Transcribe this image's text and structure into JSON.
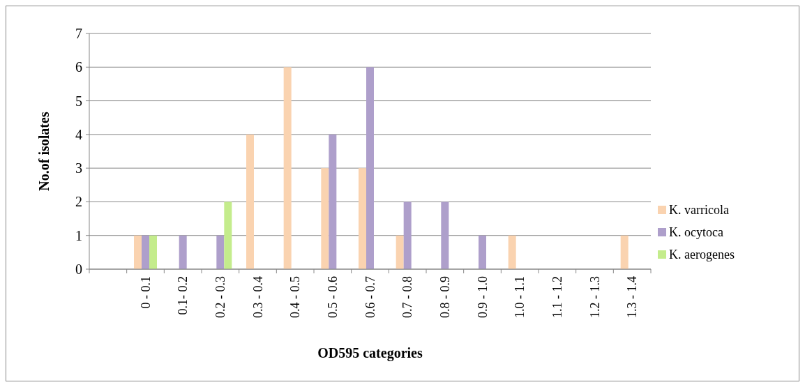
{
  "chart_data": {
    "type": "bar",
    "xlabel": "OD595 categories",
    "ylabel": "No.of isolates",
    "categories": [
      null,
      "0 - 0.1",
      "0.1- 0.2",
      "0.2 - 0.3",
      "0.3 - 0.4",
      "0.4 - 0.5",
      "0.5 - 0.6",
      "0.6 - 0.7",
      "0.7 - 0.8",
      "0.8 - 0.9",
      "0.9 - 1.0",
      "1.0 - 1.1",
      "1.1 - 1.2",
      "1.2 - 1.3",
      "1.3 - 1.4"
    ],
    "series": [
      {
        "name": "K. varricola",
        "color": "#fad3b0",
        "values": [
          null,
          1,
          0,
          0,
          4,
          6,
          3,
          3,
          1,
          0,
          0,
          1,
          0,
          0,
          1
        ]
      },
      {
        "name": "K. ocytoca",
        "color": "#ae9fcb",
        "values": [
          null,
          1,
          1,
          1,
          0,
          0,
          4,
          6,
          2,
          2,
          1,
          0,
          0,
          0,
          0
        ]
      },
      {
        "name": "K. aerogenes",
        "color": "#c4ec8c",
        "values": [
          null,
          1,
          0,
          2,
          0,
          0,
          0,
          0,
          0,
          0,
          0,
          0,
          0,
          0,
          0
        ]
      }
    ],
    "ylim": [
      0,
      7
    ],
    "yticks": [
      0,
      1,
      2,
      3,
      4,
      5,
      6,
      7
    ],
    "grid": "y",
    "legend": "right"
  }
}
